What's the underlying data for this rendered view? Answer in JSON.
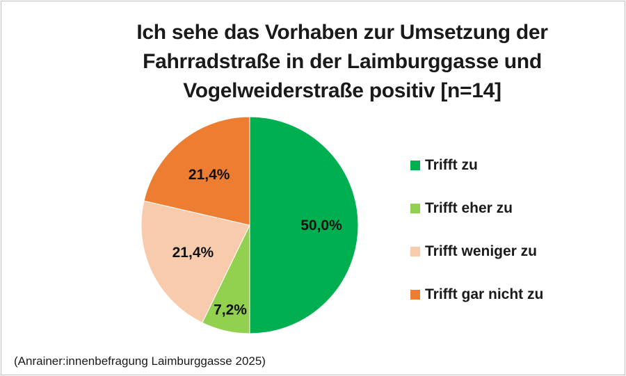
{
  "chart_data": {
    "type": "pie",
    "title_lines": [
      "Ich sehe das Vorhaben zur Umsetzung der",
      "Fahrradstraße in der Laimburggasse und",
      "Vogelweiderstraße positiv [n=14]"
    ],
    "categories": [
      "Trifft zu",
      "Trifft eher zu",
      "Trifft weniger zu",
      "Trifft gar nicht zu"
    ],
    "values": [
      50.0,
      7.2,
      21.4,
      21.4
    ],
    "value_labels": [
      "50,0%",
      "7,2%",
      "21,4%",
      "21,4%"
    ],
    "colors": [
      "#00B050",
      "#92D050",
      "#F8CBAD",
      "#ED7D31"
    ],
    "legend_position": "right",
    "start_angle": "12 o'clock, clockwise"
  },
  "footer": {
    "source": "(Anrainer:innenbefragung Laimburggasse 2025)"
  }
}
